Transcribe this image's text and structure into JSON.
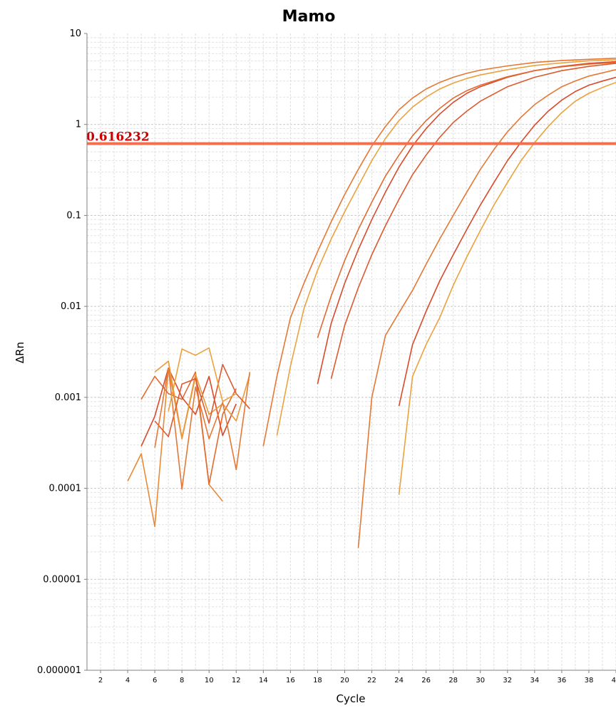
{
  "chart_data": {
    "type": "line",
    "title": "Mamo",
    "xlabel": "Cycle",
    "ylabel": "ΔRn",
    "y_scale": "log",
    "ylim": [
      1e-06,
      10
    ],
    "xlim": [
      1,
      40
    ],
    "grid": true,
    "x_ticks": [
      2,
      4,
      6,
      8,
      10,
      12,
      14,
      16,
      18,
      20,
      22,
      24,
      26,
      28,
      30,
      32,
      34,
      36,
      38,
      40
    ],
    "y_ticks": [
      {
        "value": 10,
        "label": "10"
      },
      {
        "value": 1,
        "label": "1"
      },
      {
        "value": 0.1,
        "label": "0.1"
      },
      {
        "value": 0.01,
        "label": "0.01"
      },
      {
        "value": 0.001,
        "label": "0.001"
      },
      {
        "value": 0.0001,
        "label": "0.0001"
      },
      {
        "value": 1e-05,
        "label": "0.00001"
      },
      {
        "value": 1e-06,
        "label": "0.000001"
      }
    ],
    "threshold": {
      "value": 0.616232,
      "label": "0.616232",
      "color": "#f07050",
      "label_color": "#cc0000"
    },
    "series": [
      {
        "color": "#e88a38",
        "x": [
          4,
          5,
          6,
          7,
          8,
          9,
          10,
          11
        ],
        "y": [
          0.00012,
          0.00024,
          3.8e-05,
          0.0021,
          0.00035,
          0.0017,
          0.00011,
          7.2e-05
        ]
      },
      {
        "color": "#e06a30",
        "x": [
          5,
          6,
          7,
          8,
          9,
          10,
          11,
          12
        ],
        "y": [
          0.00095,
          0.0017,
          0.0011,
          0.00095,
          0.0019,
          0.00011,
          0.00065,
          0.00125
        ]
      },
      {
        "color": "#d84a2a",
        "x": [
          5,
          6,
          7,
          8,
          9,
          10,
          11,
          12
        ],
        "y": [
          0.00029,
          0.00062,
          0.0021,
          0.001,
          0.00065,
          0.0017,
          0.00038,
          0.00085
        ]
      },
      {
        "color": "#e89a3a",
        "x": [
          6,
          7,
          8,
          9,
          10,
          11,
          12,
          13
        ],
        "y": [
          0.0019,
          0.0025,
          0.00036,
          0.0018,
          0.00065,
          0.00085,
          0.00055,
          0.0018
        ]
      },
      {
        "color": "#dc5a30",
        "x": [
          6,
          7,
          8,
          9,
          10,
          11,
          12,
          13
        ],
        "y": [
          0.00055,
          0.00037,
          0.0014,
          0.0016,
          0.00052,
          0.0023,
          0.0011,
          0.00075
        ]
      },
      {
        "color": "#e47834",
        "x": [
          6,
          7,
          8,
          9,
          10,
          11,
          12,
          13
        ],
        "y": [
          0.00028,
          0.0021,
          9.8e-05,
          0.0013,
          0.00035,
          0.00088,
          0.00016,
          0.0019
        ]
      },
      {
        "color": "#eba23c",
        "x": [
          7,
          8,
          9,
          10,
          11,
          12
        ],
        "y": [
          0.0007,
          0.0034,
          0.0029,
          0.0035,
          0.0009,
          0.0011
        ]
      },
      {
        "color": "#e47834",
        "x": [
          14,
          15,
          16,
          17,
          18,
          19,
          20,
          21,
          22,
          23,
          24,
          25,
          26,
          27,
          28,
          29,
          30,
          32,
          34,
          36,
          38,
          40
        ],
        "y": [
          0.00029,
          0.0017,
          0.0075,
          0.018,
          0.04,
          0.085,
          0.17,
          0.32,
          0.58,
          0.95,
          1.45,
          1.95,
          2.45,
          2.9,
          3.3,
          3.65,
          3.95,
          4.4,
          4.8,
          5.05,
          5.2,
          5.35
        ]
      },
      {
        "color": "#eba23c",
        "x": [
          15,
          16,
          17,
          18,
          19,
          20,
          21,
          22,
          23,
          24,
          25,
          26,
          27,
          28,
          29,
          30,
          32,
          34,
          36,
          38,
          40
        ],
        "y": [
          0.00038,
          0.0022,
          0.0095,
          0.025,
          0.055,
          0.11,
          0.21,
          0.4,
          0.7,
          1.1,
          1.55,
          2.0,
          2.45,
          2.85,
          3.2,
          3.5,
          4.0,
          4.45,
          4.75,
          5.0,
          5.15
        ]
      },
      {
        "color": "#d84a2a",
        "x": [
          18,
          19,
          20,
          21,
          22,
          23,
          24,
          25,
          26,
          27,
          28,
          29,
          30,
          32,
          34,
          36,
          38,
          40
        ],
        "y": [
          0.0014,
          0.0065,
          0.018,
          0.042,
          0.09,
          0.18,
          0.34,
          0.58,
          0.9,
          1.3,
          1.75,
          2.2,
          2.6,
          3.3,
          3.9,
          4.35,
          4.7,
          4.9
        ]
      },
      {
        "color": "#e06a30",
        "x": [
          18,
          19,
          20,
          21,
          22,
          23,
          24,
          25,
          26,
          27,
          28,
          29,
          30,
          32,
          34,
          36,
          38,
          40
        ],
        "y": [
          0.0045,
          0.013,
          0.032,
          0.07,
          0.14,
          0.27,
          0.46,
          0.75,
          1.1,
          1.5,
          1.95,
          2.35,
          2.7,
          3.35,
          3.9,
          4.3,
          4.6,
          4.8
        ]
      },
      {
        "color": "#dc5a30",
        "x": [
          19,
          20,
          21,
          22,
          23,
          24,
          25,
          26,
          27,
          28,
          29,
          30,
          32,
          34,
          36,
          38,
          40
        ],
        "y": [
          0.0016,
          0.0062,
          0.016,
          0.037,
          0.077,
          0.15,
          0.28,
          0.46,
          0.72,
          1.05,
          1.4,
          1.8,
          2.6,
          3.3,
          3.9,
          4.35,
          4.7
        ]
      },
      {
        "color": "#e47834",
        "x": [
          21,
          22,
          23,
          24,
          25,
          26,
          27,
          28,
          29,
          30,
          31,
          32,
          33,
          34,
          35,
          36,
          37,
          38,
          40
        ],
        "y": [
          2.2e-05,
          0.001,
          0.0048,
          0.0085,
          0.015,
          0.029,
          0.055,
          0.1,
          0.18,
          0.32,
          0.53,
          0.83,
          1.2,
          1.65,
          2.1,
          2.6,
          3.0,
          3.4,
          4.0
        ]
      },
      {
        "color": "#d84a2a",
        "x": [
          24,
          25,
          26,
          27,
          28,
          29,
          30,
          31,
          32,
          33,
          34,
          35,
          36,
          37,
          38,
          39,
          40
        ],
        "y": [
          0.0008,
          0.0038,
          0.0088,
          0.019,
          0.037,
          0.07,
          0.13,
          0.23,
          0.4,
          0.64,
          0.98,
          1.4,
          1.85,
          2.3,
          2.7,
          3.0,
          3.3
        ]
      },
      {
        "color": "#eba23c",
        "x": [
          24,
          25,
          26,
          27,
          28,
          29,
          30,
          31,
          32,
          33,
          34,
          35,
          36,
          37,
          38,
          39,
          40
        ],
        "y": [
          8.5e-05,
          0.0017,
          0.0038,
          0.0075,
          0.017,
          0.035,
          0.068,
          0.13,
          0.23,
          0.4,
          0.63,
          0.95,
          1.35,
          1.8,
          2.2,
          2.55,
          2.9
        ]
      }
    ]
  }
}
